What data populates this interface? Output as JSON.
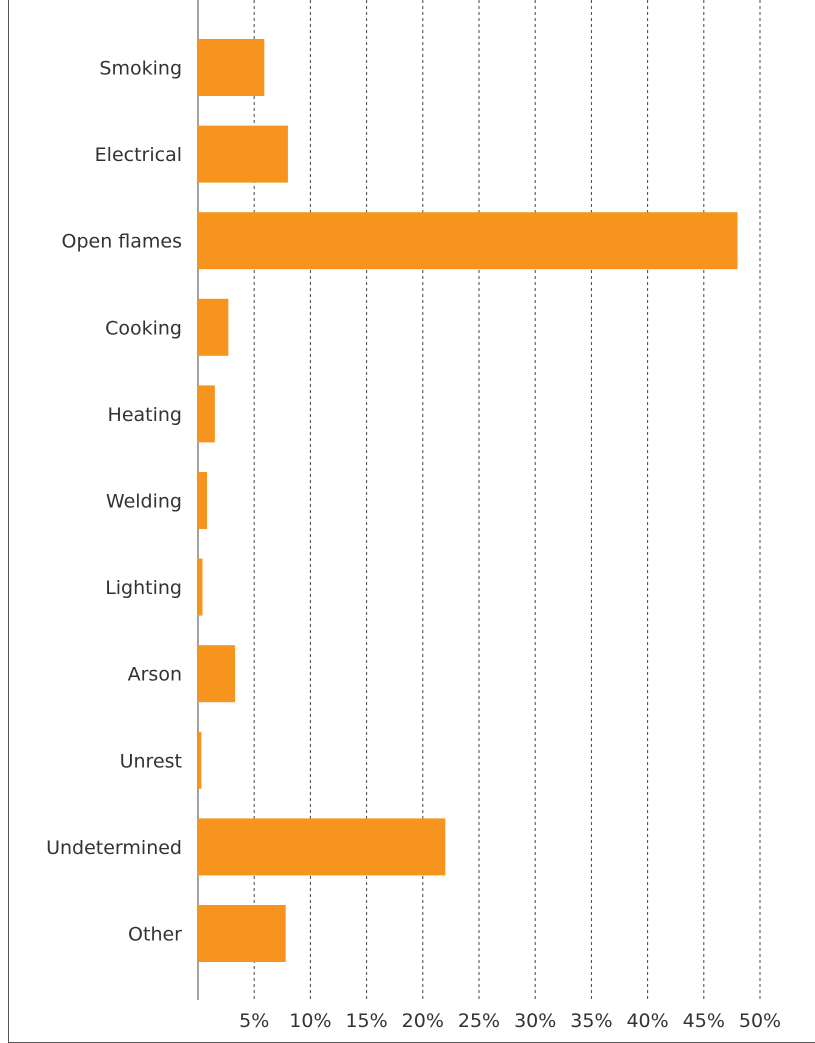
{
  "chart_data": {
    "type": "bar",
    "orientation": "horizontal",
    "categories": [
      "Smoking",
      "Electrical",
      "Open flames",
      "Cooking",
      "Heating",
      "Welding",
      "Lighting",
      "Arson",
      "Unrest",
      "Undetermined",
      "Other"
    ],
    "values": [
      5.9,
      8.0,
      48.0,
      2.7,
      1.5,
      0.8,
      0.4,
      3.3,
      0.3,
      22.0,
      7.8
    ],
    "x_ticks": [
      "5%",
      "10%",
      "15%",
      "20%",
      "25%",
      "30%",
      "35%",
      "40%",
      "45%",
      "50%"
    ],
    "x_tick_values": [
      5,
      10,
      15,
      20,
      25,
      30,
      35,
      40,
      45,
      50
    ],
    "xlim": [
      0,
      54
    ],
    "grid": true,
    "title": "",
    "xlabel": "",
    "ylabel": "",
    "bar_color": "#F7941D"
  }
}
